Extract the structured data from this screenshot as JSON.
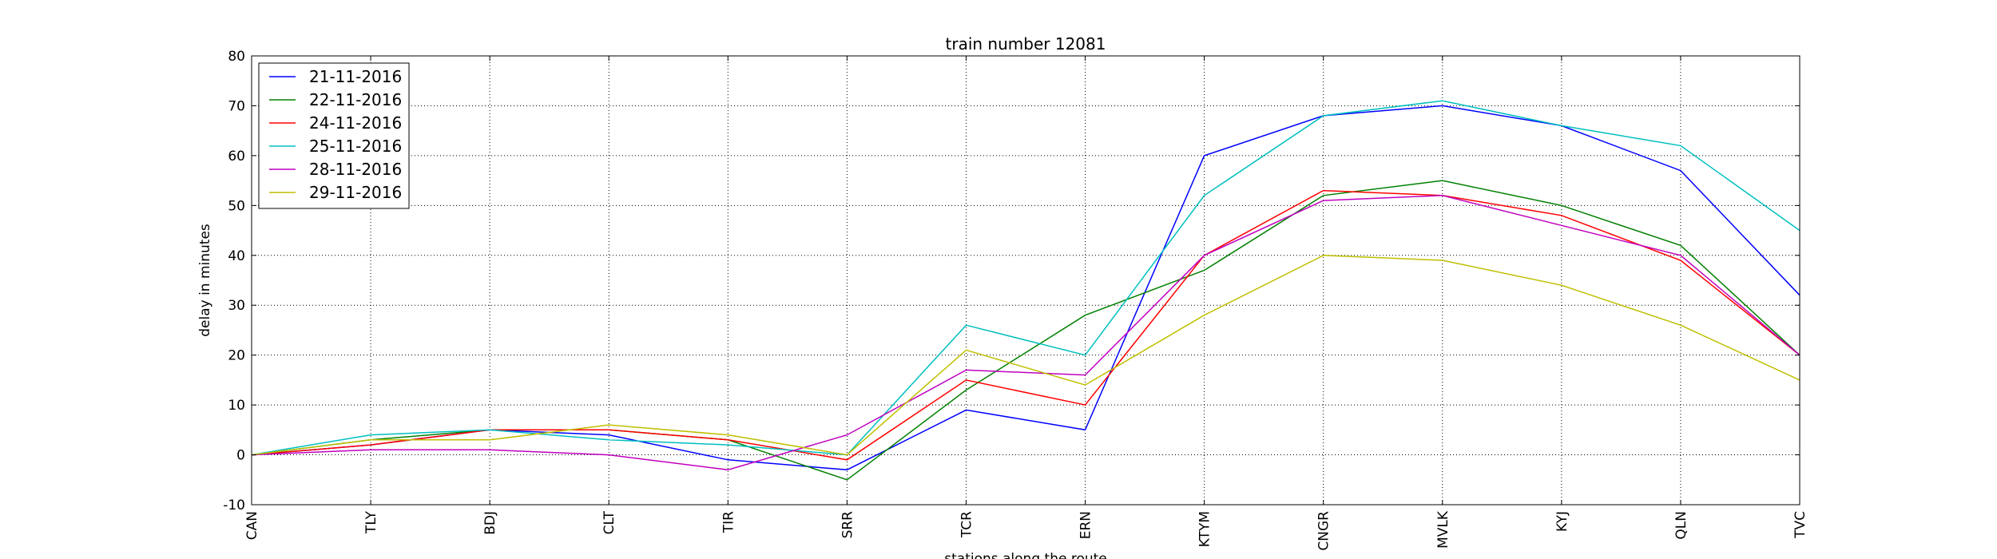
{
  "chart_data": {
    "type": "line",
    "title": "train number 12081",
    "xlabel": "stations along the route",
    "ylabel": "delay in minutes",
    "categories": [
      "CAN",
      "TLY",
      "BDJ",
      "CLT",
      "TIR",
      "SRR",
      "TCR",
      "ERN",
      "KTYM",
      "CNGR",
      "MVLK",
      "KYJ",
      "QLN",
      "TVC"
    ],
    "ylim": [
      -10,
      80
    ],
    "yticks": [
      -10,
      0,
      10,
      20,
      30,
      40,
      50,
      60,
      70,
      80
    ],
    "grid": true,
    "legend_position": "top-left",
    "series": [
      {
        "name": "21-11-2016",
        "color": "#0000ff",
        "values": [
          0,
          2,
          5,
          4,
          -1,
          -3,
          9,
          5,
          60,
          68,
          70,
          66,
          57,
          32
        ]
      },
      {
        "name": "22-11-2016",
        "color": "#008000",
        "values": [
          0,
          3,
          5,
          5,
          3,
          -5,
          13,
          28,
          37,
          52,
          55,
          50,
          42,
          20
        ]
      },
      {
        "name": "24-11-2016",
        "color": "#ff0000",
        "values": [
          0,
          2,
          5,
          5,
          3,
          -1,
          15,
          10,
          40,
          53,
          52,
          48,
          39,
          20
        ]
      },
      {
        "name": "25-11-2016",
        "color": "#00bfbf",
        "values": [
          0,
          4,
          5,
          3,
          2,
          0,
          26,
          20,
          52,
          68,
          71,
          66,
          62,
          45
        ]
      },
      {
        "name": "28-11-2016",
        "color": "#bf00bf",
        "values": [
          0,
          1,
          1,
          0,
          -3,
          4,
          17,
          16,
          40,
          51,
          52,
          46,
          40,
          20
        ]
      },
      {
        "name": "29-11-2016",
        "color": "#bfbf00",
        "values": [
          0,
          3,
          3,
          6,
          4,
          0,
          21,
          14,
          28,
          40,
          39,
          34,
          26,
          15
        ]
      }
    ]
  }
}
